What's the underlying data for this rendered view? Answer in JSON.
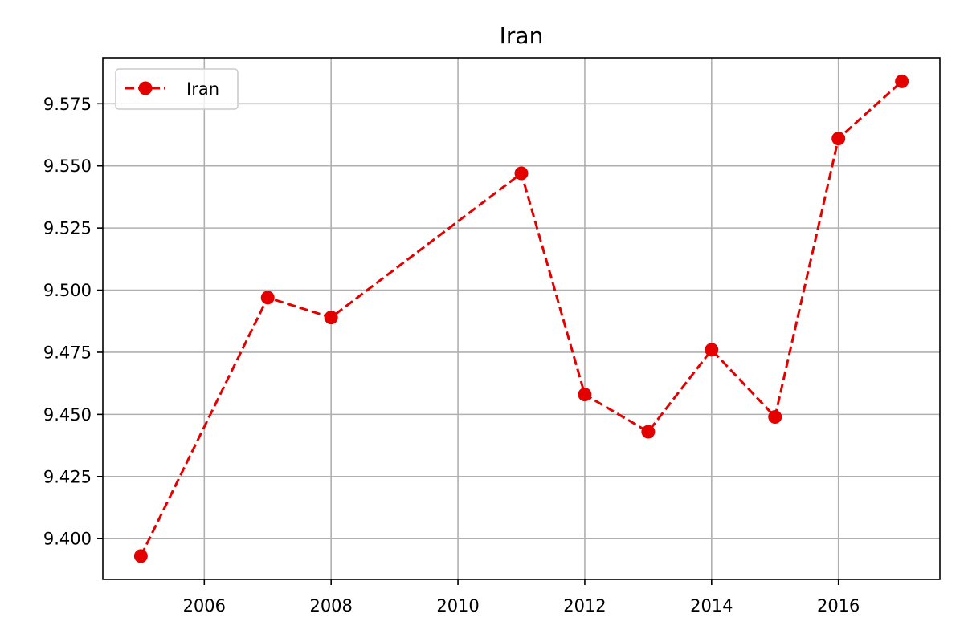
{
  "chart_data": {
    "type": "line",
    "title": "Iran",
    "xlabel": "",
    "ylabel": "",
    "xlim": [
      2004.4,
      2017.6
    ],
    "ylim": [
      9.3836,
      9.5935
    ],
    "x_ticks": [
      2006,
      2008,
      2010,
      2012,
      2014,
      2016
    ],
    "x_tick_labels": [
      "2006",
      "2008",
      "2010",
      "2012",
      "2014",
      "2016"
    ],
    "y_ticks": [
      9.4,
      9.425,
      9.45,
      9.475,
      9.5,
      9.525,
      9.55,
      9.575
    ],
    "y_tick_labels": [
      "9.400",
      "9.425",
      "9.450",
      "9.475",
      "9.500",
      "9.525",
      "9.550",
      "9.575"
    ],
    "grid": true,
    "legend_position": "top-left",
    "series": [
      {
        "name": "Iran",
        "color": "#e50000",
        "line_style": "dashed",
        "marker": "circle",
        "points": [
          {
            "x": 2005,
            "y": 9.393
          },
          {
            "x": 2007,
            "y": 9.497
          },
          {
            "x": 2008,
            "y": 9.489
          },
          {
            "x": 2011,
            "y": 9.547
          },
          {
            "x": 2012,
            "y": 9.458
          },
          {
            "x": 2013,
            "y": 9.443
          },
          {
            "x": 2014,
            "y": 9.476
          },
          {
            "x": 2015,
            "y": 9.449
          },
          {
            "x": 2016,
            "y": 9.561
          },
          {
            "x": 2017,
            "y": 9.584
          }
        ]
      }
    ]
  }
}
